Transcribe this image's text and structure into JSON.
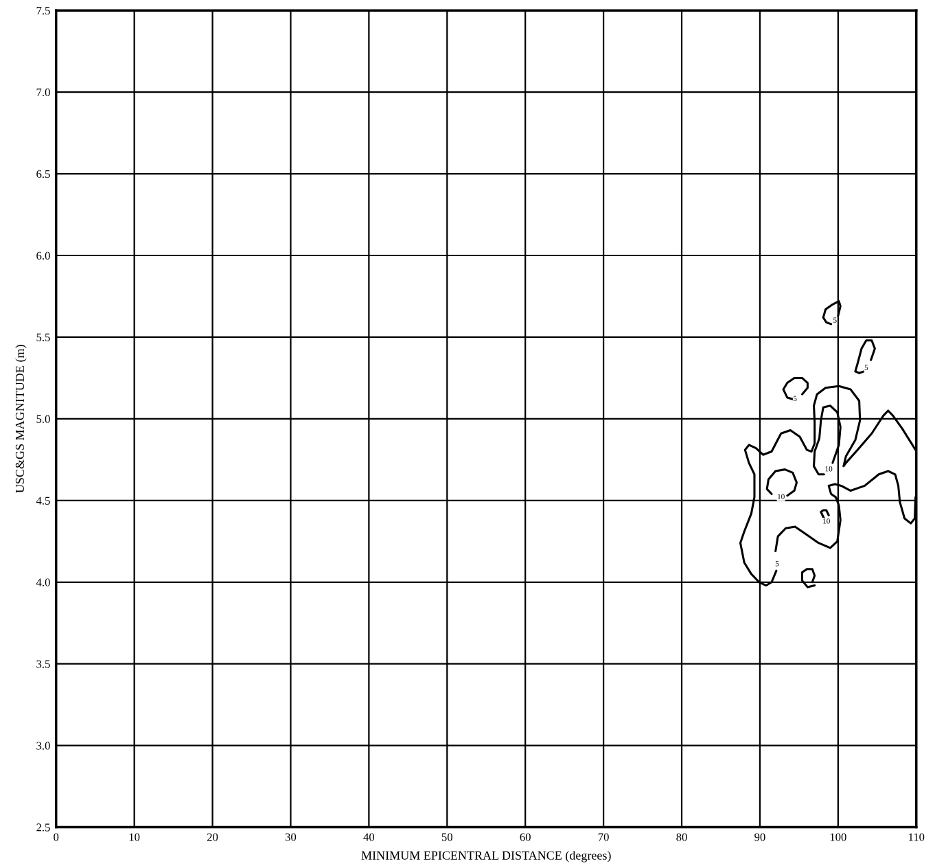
{
  "chart_data": {
    "type": "line",
    "xlabel": "MINIMUM EPICENTRAL DISTANCE (degrees)",
    "ylabel": "USC&GS MAGNITUDE (m)",
    "xlim": [
      0,
      110
    ],
    "xticks": [
      0,
      10,
      20,
      30,
      40,
      50,
      60,
      70,
      80,
      90,
      100,
      110
    ],
    "ylim": [
      2.5,
      7.5
    ],
    "yticks": [
      2.5,
      {
        "value": 3,
        "label": "3.0"
      },
      3.5,
      {
        "value": 4,
        "label": "4.0"
      },
      4.5,
      {
        "value": 5,
        "label": "5.0"
      },
      5.5,
      {
        "value": 6,
        "label": "6.0"
      },
      6.5,
      {
        "value": 7,
        "label": "7.0"
      },
      7.5
    ],
    "grid": true,
    "marker": "none",
    "line_style": "solid",
    "series": [
      {
        "color": "#000000",
        "x": [
          92.0,
          92.3,
          93.3,
          94.5,
          96.0,
          97.5,
          99.0,
          99.9,
          100.3,
          100.1,
          99.7,
          99.1,
          98.8,
          99.6,
          100.4,
          101.6,
          103.4,
          105.2,
          106.4,
          107.3,
          107.7,
          107.9,
          108.5,
          109.3,
          109.8,
          109.9,
          null,
          109.9,
          108.2,
          107.0,
          106.4,
          105.8,
          104.3,
          102.5,
          101.0,
          100.7,
          101.0,
          102.2,
          102.8,
          102.7,
          101.6,
          100.1,
          98.4,
          97.3,
          96.9,
          97.0,
          97.0,
          96.6,
          96.0,
          95.1,
          93.9,
          92.7,
          91.5,
          90.4,
          89.5,
          88.6,
          88.1,
          88.6,
          89.3,
          89.3,
          88.9,
          88.0,
          87.5,
          88.0,
          88.9,
          89.9,
          90.8,
          91.5,
          92.1
        ],
        "values": [
          4.19,
          4.28,
          4.33,
          4.34,
          4.29,
          4.24,
          4.21,
          4.25,
          4.38,
          4.47,
          4.52,
          4.54,
          4.59,
          4.6,
          4.59,
          4.56,
          4.59,
          4.66,
          4.68,
          4.66,
          4.59,
          4.49,
          4.39,
          4.36,
          4.39,
          4.52,
          null,
          4.81,
          4.94,
          5.02,
          5.05,
          5.02,
          4.91,
          4.81,
          4.73,
          4.71,
          4.77,
          4.87,
          4.99,
          5.11,
          5.18,
          5.2,
          5.19,
          5.15,
          5.08,
          4.98,
          4.85,
          4.8,
          4.81,
          4.89,
          4.93,
          4.91,
          4.8,
          4.78,
          4.82,
          4.84,
          4.81,
          4.73,
          4.66,
          4.52,
          4.42,
          4.31,
          4.24,
          4.12,
          4.05,
          4.0,
          3.98,
          4.0,
          4.07
        ]
      },
      {
        "color": "#000000",
        "x": [
          99.3,
          100.1,
          100.3,
          99.9,
          99.0,
          98.1,
          97.8,
          97.6,
          97.0,
          96.9,
          97.5,
          98.2
        ],
        "values": [
          4.73,
          4.84,
          4.95,
          5.04,
          5.08,
          5.07,
          4.99,
          4.88,
          4.8,
          4.71,
          4.66,
          4.66
        ]
      },
      {
        "color": "#000000",
        "x": [
          100.0,
          100.3,
          100.1,
          99.3,
          98.4,
          98.1,
          98.5,
          99.1
        ],
        "values": [
          5.63,
          5.69,
          5.72,
          5.7,
          5.67,
          5.62,
          5.59,
          5.58
        ]
      },
      {
        "color": "#000000",
        "x": [
          104.2,
          104.7,
          104.3,
          103.6,
          103.0,
          102.5,
          102.2,
          102.7,
          103.3
        ],
        "values": [
          5.36,
          5.43,
          5.48,
          5.48,
          5.43,
          5.34,
          5.29,
          5.28,
          5.29
        ]
      },
      {
        "color": "#000000",
        "x": [
          95.4,
          96.1,
          96.1,
          95.4,
          94.4,
          93.5,
          93.0,
          93.5,
          94.2
        ],
        "values": [
          5.15,
          5.19,
          5.22,
          5.25,
          5.25,
          5.22,
          5.18,
          5.13,
          5.12
        ]
      },
      {
        "color": "#000000",
        "x": [
          93.5,
          94.4,
          94.7,
          94.2,
          93.2,
          92.0,
          91.1,
          90.9,
          91.5
        ],
        "values": [
          4.53,
          4.56,
          4.61,
          4.67,
          4.69,
          4.68,
          4.63,
          4.57,
          4.54
        ]
      },
      {
        "color": "#000000",
        "x": [
          98.7,
          98.2,
          97.8,
          98.1,
          98.5,
          98.8
        ],
        "values": [
          4.36,
          4.39,
          4.43,
          4.44,
          4.44,
          4.41
        ]
      },
      {
        "color": "#000000",
        "x": [
          97.0,
          96.1,
          95.4,
          95.4,
          96.0,
          96.7,
          97.0,
          96.7
        ],
        "values": [
          3.98,
          3.97,
          4.01,
          4.06,
          4.08,
          4.08,
          4.04,
          4.0
        ]
      }
    ],
    "annotations": [
      {
        "text": "5",
        "x": 99.6,
        "y": 5.6
      },
      {
        "text": "5",
        "x": 103.6,
        "y": 5.31
      },
      {
        "text": "5",
        "x": 94.5,
        "y": 5.12
      },
      {
        "text": "5",
        "x": 92.2,
        "y": 4.11
      },
      {
        "text": "10",
        "x": 98.8,
        "y": 4.69
      },
      {
        "text": "10",
        "x": 92.7,
        "y": 4.52
      },
      {
        "text": "10",
        "x": 98.5,
        "y": 4.37
      }
    ]
  }
}
